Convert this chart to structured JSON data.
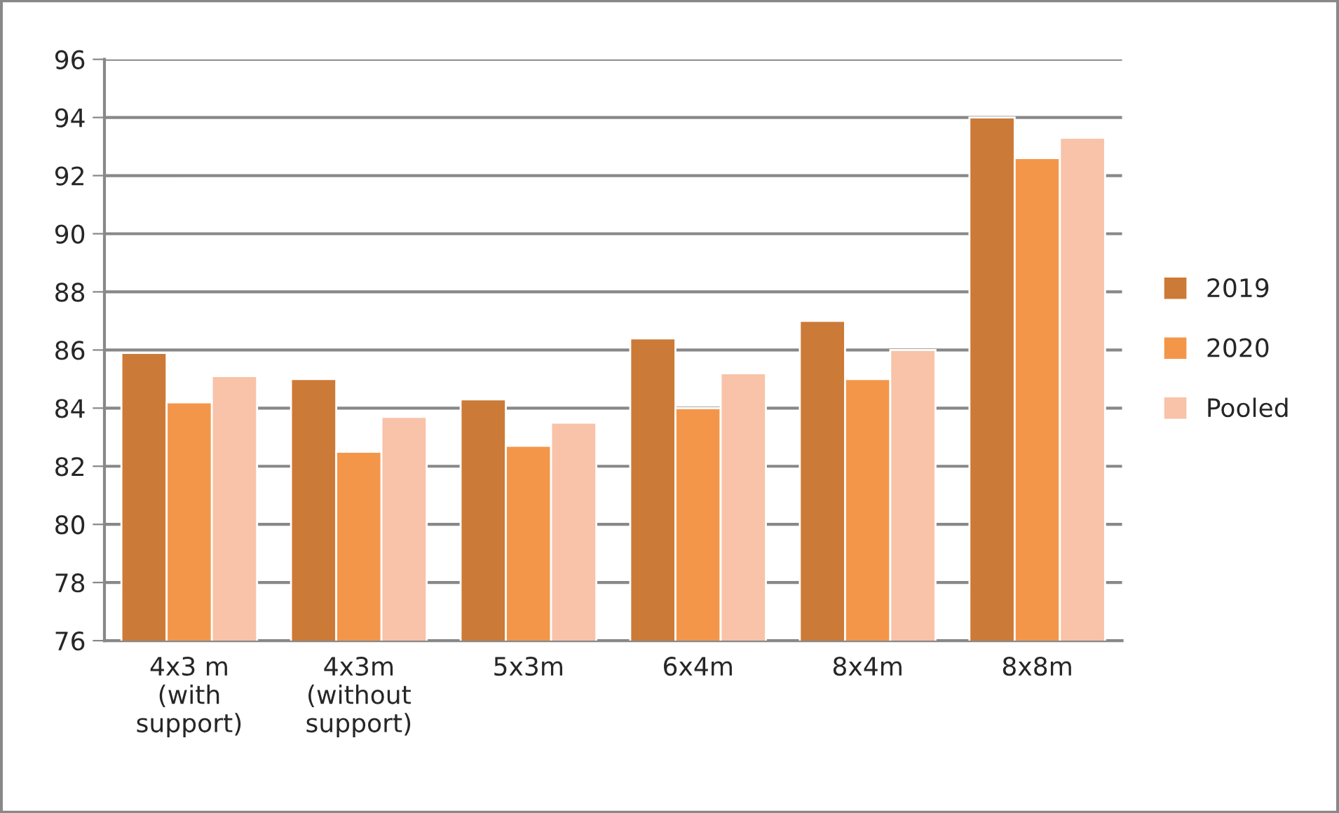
{
  "chart_data": {
    "type": "bar",
    "categories": [
      "4x3 m\n(with\nsupport)",
      "4x3m\n(without\nsupport)",
      "5x3m",
      "6x4m",
      "8x4m",
      "8x8m"
    ],
    "series": [
      {
        "name": "2019",
        "color": "#cc7a37",
        "values": [
          85.9,
          85.0,
          84.3,
          86.4,
          87.0,
          94.0
        ]
      },
      {
        "name": "2020",
        "color": "#f4964a",
        "values": [
          84.2,
          82.5,
          82.7,
          84.0,
          85.0,
          92.6
        ]
      },
      {
        "name": "Pooled",
        "color": "#f8c3a8",
        "values": [
          85.1,
          83.7,
          83.5,
          85.2,
          86.0,
          93.3
        ]
      }
    ],
    "ylim": [
      76,
      96
    ],
    "yticks": [
      76,
      78,
      80,
      82,
      84,
      86,
      88,
      90,
      92,
      94,
      96
    ],
    "grid": "y",
    "legend": "right"
  }
}
